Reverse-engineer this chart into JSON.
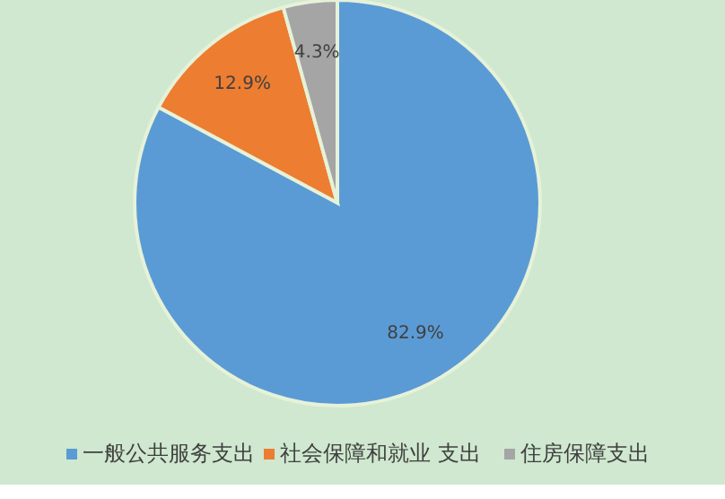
{
  "chart_data": {
    "type": "pie",
    "categories": [
      "一般公共服务支出",
      "社会保障和就业 支出",
      "住房保障支出"
    ],
    "values": [
      82.9,
      12.9,
      4.3
    ],
    "colors": [
      "#5b9bd5",
      "#ed7d31",
      "#a5a5a5"
    ],
    "value_labels": [
      "82.9%",
      "12.9%",
      "4.3%"
    ],
    "legend": "bottom"
  }
}
